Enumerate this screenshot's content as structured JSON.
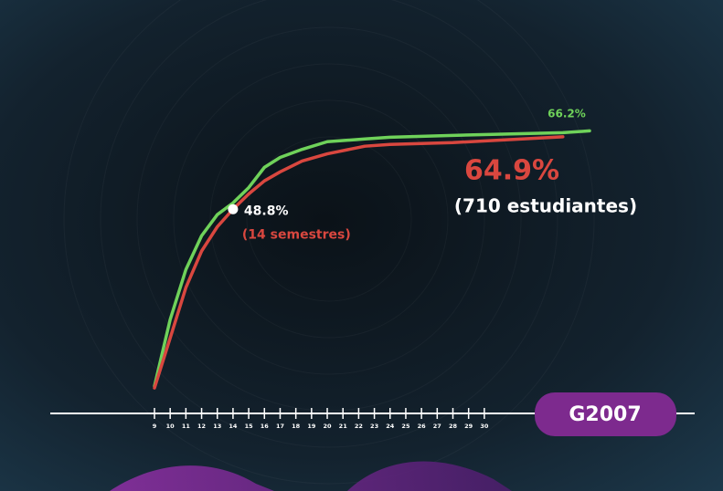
{
  "chart_data": {
    "type": "line",
    "x": [
      9,
      10,
      11,
      12,
      13,
      14,
      15,
      16,
      17,
      18.4,
      20,
      22.4,
      24,
      28,
      35,
      36.7
    ],
    "xlim": [
      9,
      36.7
    ],
    "xticks": [
      9,
      10,
      11,
      12,
      13,
      14,
      15,
      16,
      17,
      18,
      19,
      20,
      21,
      22,
      23,
      24,
      25,
      26,
      27,
      28,
      29,
      30
    ],
    "ylim": [
      0,
      75
    ],
    "series": [
      {
        "color": "#6fd25a",
        "label": "66.2%",
        "values": [
          9.5,
          24.3,
          35.4,
          42.9,
          47.6,
          50.2,
          53.6,
          58.1,
          60.3,
          62.1,
          63.8,
          64.4,
          64.8,
          65.2,
          65.8,
          66.2
        ]
      },
      {
        "color": "#d9473f",
        "label": "64.9%",
        "sublabel": "(710 estudiantes)",
        "values": [
          9.1,
          20.2,
          31.4,
          39.5,
          44.9,
          48.8,
          52.2,
          55.1,
          57.1,
          59.5,
          61.1,
          62.8,
          63.2,
          63.6,
          64.9,
          null
        ]
      }
    ],
    "marker": {
      "x": 14,
      "value": 48.8,
      "label": "48.8%",
      "note": "(14 semestres)"
    },
    "badge": "G2007"
  }
}
